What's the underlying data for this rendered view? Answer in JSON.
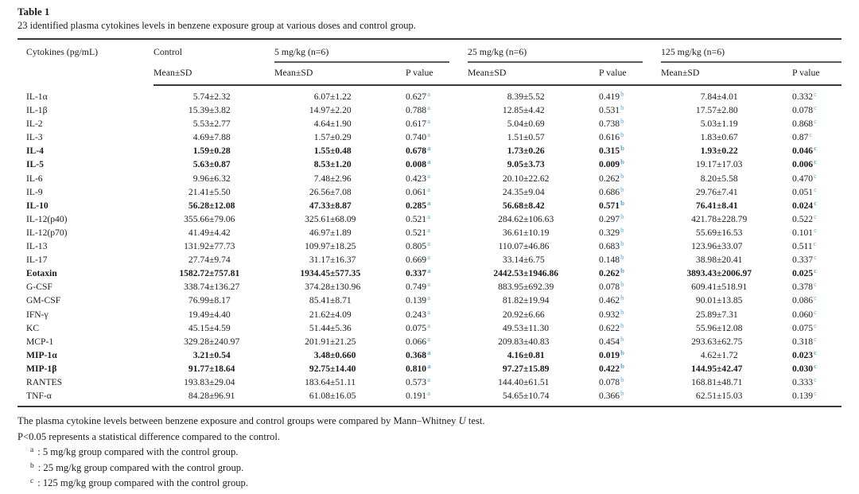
{
  "title": "Table 1",
  "subtitle": "23 identified plasma cytokines levels in benzene exposure group at various doses and control group.",
  "sup_color": "#55ace0",
  "header": {
    "col1": "Cytokines (pg/mL)",
    "mean_sd": "Mean±SD",
    "p_value": "P value",
    "groups": [
      {
        "label": "Control",
        "key": "control"
      },
      {
        "label": "5 mg/kg (n=6)",
        "key": "d5",
        "pkey": "p5",
        "sup": "a"
      },
      {
        "label": "25 mg/kg (n=6)",
        "key": "d25",
        "pkey": "p25",
        "sup": "b"
      },
      {
        "label": "125 mg/kg (n=6)",
        "key": "d125",
        "pkey": "p125",
        "sup": "c"
      }
    ]
  },
  "table": {
    "rows": [
      {
        "name": "IL-1α",
        "control": "5.74±2.32",
        "d5": "6.07±1.22",
        "p5": "0.627",
        "d25": "8.39±5.52",
        "p25": "0.419",
        "d125": "7.84±4.01",
        "p125": "0.332"
      },
      {
        "name": "IL-1β",
        "control": "15.39±3.82",
        "d5": "14.97±2.20",
        "p5": "0.788",
        "d25": "12.85±4.42",
        "p25": "0.531",
        "d125": "17.57±2.80",
        "p125": "0.078"
      },
      {
        "name": "IL-2",
        "control": "5.53±2.77",
        "d5": "4.64±1.90",
        "p5": "0.617",
        "d25": "5.04±0.69",
        "p25": "0.738",
        "d125": "5.03±1.19",
        "p125": "0.868"
      },
      {
        "name": "IL-3",
        "control": "4.69±7.88",
        "d5": "1.57±0.29",
        "p5": "0.740",
        "d25": "1.51±0.57",
        "p25": "0.616",
        "d125": "1.83±0.67",
        "p125": "0.87"
      },
      {
        "name": "IL-4",
        "bold": true,
        "control": "1.59±0.28",
        "d5": "1.55±0.48",
        "p5": "0.678",
        "d25": "1.73±0.26",
        "p25": "0.315",
        "d125": "1.93±0.22",
        "p125": "0.046"
      },
      {
        "name": "IL-5",
        "bold": true,
        "regular": [
          "d125_mean"
        ],
        "control": "5.63±0.87",
        "d5": "8.53±1.20",
        "p5": "0.008",
        "d25": "9.05±3.73",
        "p25": "0.009",
        "d125": "19.17±17.03",
        "p125": "0.006"
      },
      {
        "name": "IL-6",
        "control": "9.96±6.32",
        "d5": "7.48±2.96",
        "p5": "0.423",
        "d25": "20.10±22.62",
        "p25": "0.262",
        "d125": "8.20±5.58",
        "p125": "0.470"
      },
      {
        "name": "IL-9",
        "control": "21.41±5.50",
        "d5": "26.56±7.08",
        "p5": "0.061",
        "d25": "24.35±9.04",
        "p25": "0.686",
        "d125": "29.76±7.41",
        "p125": "0.051"
      },
      {
        "name": "IL-10",
        "bold": true,
        "control": "56.28±12.08",
        "d5": "47.33±8.87",
        "p5": "0.285",
        "d25": "56.68±8.42",
        "p25": "0.571",
        "d125": "76.41±8.41",
        "p125": "0.024"
      },
      {
        "name": "IL-12(p40)",
        "control": "355.66±79.06",
        "d5": "325.61±68.09",
        "p5": "0.521",
        "d25": "284.62±106.63",
        "p25": "0.297",
        "d125": "421.78±228.79",
        "p125": "0.522"
      },
      {
        "name": "IL-12(p70)",
        "control": "41.49±4.42",
        "d5": "46.97±1.89",
        "p5": "0.521",
        "d25": "36.61±10.19",
        "p25": "0.329",
        "d125": "55.69±16.53",
        "p125": "0.101"
      },
      {
        "name": "IL-13",
        "control": "131.92±77.73",
        "d5": "109.97±18.25",
        "p5": "0.805",
        "d25": "110.07±46.86",
        "p25": "0.683",
        "d125": "123.96±33.07",
        "p125": "0.511"
      },
      {
        "name": "IL-17",
        "control": "27.74±9.74",
        "d5": "31.17±16.37",
        "p5": "0.669",
        "d25": "33.14±6.75",
        "p25": "0.148",
        "d125": "38.98±20.41",
        "p125": "0.337"
      },
      {
        "name": "Eotaxin",
        "bold": true,
        "control": "1582.72±757.81",
        "d5": "1934.45±577.35",
        "p5": "0.337",
        "d25": "2442.53±1946.86",
        "p25": "0.262",
        "d125": "3893.43±2006.97",
        "p125": "0.025"
      },
      {
        "name": "G-CSF",
        "control": "338.74±136.27",
        "d5": "374.28±130.96",
        "p5": "0.749",
        "d25": "883.95±692.39",
        "p25": "0.078",
        "d125": "609.41±518.91",
        "p125": "0.378"
      },
      {
        "name": "GM-CSF",
        "control": "76.99±8.17",
        "d5": "85.41±8.71",
        "p5": "0.139",
        "d25": "81.82±19.94",
        "p25": "0.462",
        "d125": "90.01±13.85",
        "p125": "0.086"
      },
      {
        "name": "IFN-γ",
        "control": "19.49±4.40",
        "d5": "21.62±4.09",
        "p5": "0.243",
        "d25": "20.92±6.66",
        "p25": "0.932",
        "d125": "25.89±7.31",
        "p125": "0.060"
      },
      {
        "name": "KC",
        "control": "45.15±4.59",
        "d5": "51.44±5.36",
        "p5": "0.075",
        "d25": "49.53±11.30",
        "p25": "0.622",
        "d125": "55.96±12.08",
        "p125": "0.075"
      },
      {
        "name": "MCP-1",
        "control": "329.28±240.97",
        "d5": "201.91±21.25",
        "p5": "0.066",
        "d25": "209.83±40.83",
        "p25": "0.454",
        "d125": "293.63±62.75",
        "p125": "0.318"
      },
      {
        "name": "MIP-1α",
        "bold": true,
        "regular": [
          "d125_mean"
        ],
        "control": "3.21±0.54",
        "d5": "3.48±0.660",
        "p5": "0.368",
        "d25": "4.16±0.81",
        "p25": "0.019",
        "d125": "4.62±1.72",
        "p125": "0.023"
      },
      {
        "name": "MIP-1β",
        "bold": true,
        "control": "91.77±18.64",
        "d5": "92.75±14.40",
        "p5": "0.810",
        "d25": "97.27±15.89",
        "p25": "0.422",
        "d125": "144.95±42.47",
        "p125": "0.030"
      },
      {
        "name": "RANTES",
        "control": "193.83±29.04",
        "d5": "183.64±51.11",
        "p5": "0.573",
        "d25": "144.40±61.51",
        "p25": "0.078",
        "d125": "168.81±48.71",
        "p125": "0.333"
      },
      {
        "name": "TNF-α",
        "control": "84.28±96.91",
        "d5": "61.08±16.05",
        "p5": "0.191",
        "d25": "54.65±10.74",
        "p25": "0.366",
        "d125": "62.51±15.03",
        "p125": "0.139"
      }
    ]
  },
  "footnotes": {
    "method": {
      "before": "The plasma cytokine levels between benzene exposure and control groups were compared by Mann–Whitney ",
      "u": "U",
      "after": " test."
    },
    "pvalue_note": "P<0.05 represents a statistical difference compared to the control.",
    "markers": [
      {
        "marker": "a",
        "text": ": 5 mg/kg group compared with the control group."
      },
      {
        "marker": "b",
        "text": ": 25 mg/kg group compared with the control group."
      },
      {
        "marker": "c",
        "text": ": 125 mg/kg group compared with the control group."
      }
    ]
  }
}
